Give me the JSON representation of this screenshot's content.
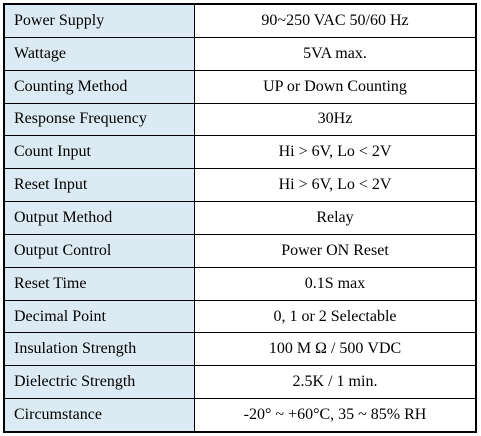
{
  "spec_table": {
    "rows": [
      {
        "label": "Power Supply",
        "value": "90~250 VAC 50/60 Hz"
      },
      {
        "label": "Wattage",
        "value": "5VA max."
      },
      {
        "label": "Counting Method",
        "value": "UP or Down Counting"
      },
      {
        "label": "Response Frequency",
        "value": "30Hz"
      },
      {
        "label": "Count Input",
        "value": "Hi > 6V, Lo < 2V"
      },
      {
        "label": "Reset Input",
        "value": "Hi > 6V, Lo < 2V"
      },
      {
        "label": "Output Method",
        "value": "Relay"
      },
      {
        "label": "Output Control",
        "value": "Power ON Reset"
      },
      {
        "label": "Reset Time",
        "value": "0.1S max"
      },
      {
        "label": "Decimal Point",
        "value": "0, 1 or 2 Selectable"
      },
      {
        "label": "Insulation Strength",
        "value": "100 M Ω / 500 VDC"
      },
      {
        "label": "Dielectric Strength",
        "value": "2.5K / 1 min."
      },
      {
        "label": "Circumstance",
        "value": "-20° ~ +60°C, 35 ~ 85% RH"
      }
    ]
  },
  "colors": {
    "label_background": "#dcebf3",
    "value_background": "#ffffff",
    "border": "#000000"
  }
}
